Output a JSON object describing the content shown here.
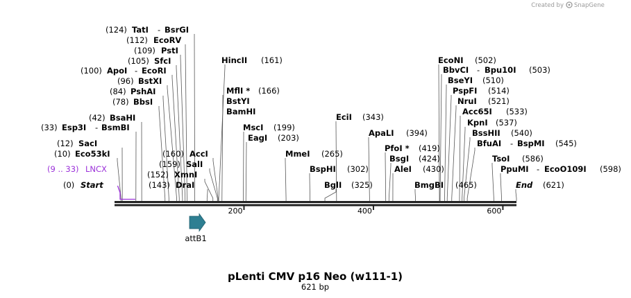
{
  "credit": {
    "text": "Created by",
    "brand": "SnapGene"
  },
  "title": "pLenti CMV p16 Neo (w111-1)",
  "length": "621 bp",
  "sequence_length": 621,
  "ticks": [
    "200",
    "400",
    "600"
  ],
  "tick_values": [
    200,
    400,
    600
  ],
  "colors": {
    "backbone": "#222222",
    "lncx": "#9b30d9",
    "attb1": "#2e7f92",
    "leader": "#555555"
  },
  "features": [
    {
      "name": "LNCX",
      "pos": "(9 .. 33)",
      "start": 9,
      "end": 33,
      "color": "#9b30d9"
    },
    {
      "name": "attB1",
      "start": 108,
      "end": 133,
      "color": "#2e7f92",
      "direction": "forward"
    }
  ],
  "sites_left": [
    {
      "id": "tati",
      "pos": "(124)",
      "name": "TatI",
      "sep": "-",
      "name2": "BsrGI",
      "bp": 124
    },
    {
      "id": "ecorv",
      "pos": "(112)",
      "name": "EcoRV",
      "bp": 112
    },
    {
      "id": "psti",
      "pos": "(109)",
      "name": "PstI",
      "bp": 109
    },
    {
      "id": "sfci",
      "pos": "(105)",
      "name": "SfcI",
      "bp": 105
    },
    {
      "id": "apoi",
      "pos": "(100)",
      "name": "ApoI",
      "sep": "-",
      "name2": "EcoRI",
      "bp": 100
    },
    {
      "id": "bstxi",
      "pos": "(96)",
      "name": "BstXI",
      "bp": 96
    },
    {
      "id": "pshai",
      "pos": "(84)",
      "name": "PshAI",
      "bp": 84
    },
    {
      "id": "bbsi",
      "pos": "(78)",
      "name": "BbsI",
      "bp": 78
    },
    {
      "id": "bsahi",
      "pos": "(42)",
      "name": "BsaHI",
      "bp": 42
    },
    {
      "id": "esp3i",
      "pos": "(33)",
      "name": "Esp3I",
      "sep": "-",
      "name2": "BsmBI",
      "bp": 33
    },
    {
      "id": "saci",
      "pos": "(12)",
      "name": "SacI",
      "bp": 12
    },
    {
      "id": "eco53ki",
      "pos": "(10)",
      "name": "Eco53kI",
      "bp": 10
    }
  ],
  "sites_mid_left": [
    {
      "id": "acci",
      "pos": "(160)",
      "name": "AccI",
      "bp": 160
    },
    {
      "id": "sali",
      "pos": "(159)",
      "name": "SalI",
      "bp": 159
    },
    {
      "id": "xmni",
      "pos": "(152)",
      "name": "XmnI",
      "bp": 152
    },
    {
      "id": "drai",
      "pos": "(143)",
      "name": "DraI",
      "bp": 143
    }
  ],
  "sites_mid": [
    {
      "id": "hincii",
      "name": "HincII",
      "pos": "(161)",
      "bp": 161
    },
    {
      "id": "mfli",
      "name": "MflI *",
      "pos": "(166)",
      "bp": 166
    },
    {
      "id": "bstyi",
      "name": "BstYI",
      "bp": 166
    },
    {
      "id": "bamhi",
      "name": "BamHI",
      "bp": 166
    },
    {
      "id": "msci",
      "name": "MscI",
      "pos": "(199)",
      "bp": 199
    },
    {
      "id": "eagi",
      "name": "EagI",
      "pos": "(203)",
      "bp": 203
    },
    {
      "id": "mmei",
      "name": "MmeI",
      "pos": "(265)",
      "bp": 265
    },
    {
      "id": "ecii",
      "name": "EciI",
      "pos": "(343)",
      "bp": 343
    },
    {
      "id": "bsphi",
      "name": "BspHI",
      "pos": "(302)",
      "bp": 302
    },
    {
      "id": "bgli",
      "name": "BglI",
      "pos": "(325)",
      "bp": 325
    },
    {
      "id": "apali",
      "name": "ApaLI",
      "pos": "(394)",
      "bp": 394
    },
    {
      "id": "pfoi",
      "name": "PfoI *",
      "pos": "(419)",
      "bp": 419
    },
    {
      "id": "bsgi",
      "name": "BsgI",
      "pos": "(424)",
      "bp": 424
    },
    {
      "id": "alei",
      "name": "AleI",
      "pos": "(430)",
      "bp": 430
    },
    {
      "id": "bmgbi",
      "name": "BmgBI",
      "pos": "(465)",
      "bp": 465
    }
  ],
  "sites_right": [
    {
      "id": "econi",
      "name": "EcoNI",
      "pos": "(502)",
      "bp": 502
    },
    {
      "id": "bbvci",
      "name": "BbvCI",
      "sep": "-",
      "name2": "Bpu10I",
      "pos": "(503)",
      "bp": 503
    },
    {
      "id": "bseyi",
      "name": "BseYI",
      "pos": "(510)",
      "bp": 510
    },
    {
      "id": "pspfi",
      "name": "PspFI",
      "pos": "(514)",
      "bp": 514
    },
    {
      "id": "nrui",
      "name": "NruI",
      "pos": "(521)",
      "bp": 521
    },
    {
      "id": "acc65i",
      "name": "Acc65I",
      "pos": "(533)",
      "bp": 533
    },
    {
      "id": "kpni",
      "name": "KpnI",
      "pos": "(537)",
      "bp": 537
    },
    {
      "id": "bsshii",
      "name": "BssHII",
      "pos": "(540)",
      "bp": 540
    },
    {
      "id": "bfuai",
      "name": "BfuAI",
      "sep": "-",
      "name2": "BspMI",
      "pos": "(545)",
      "bp": 545
    },
    {
      "id": "tsoi",
      "name": "TsoI",
      "pos": "(586)",
      "bp": 586
    },
    {
      "id": "ppumi",
      "name": "PpuMI",
      "sep": "-",
      "name2": "EcoO109I",
      "pos": "(598)",
      "bp": 598
    }
  ],
  "start": {
    "pos": "(0)",
    "label": "Start"
  },
  "end": {
    "label": "End",
    "pos": "(621)"
  }
}
